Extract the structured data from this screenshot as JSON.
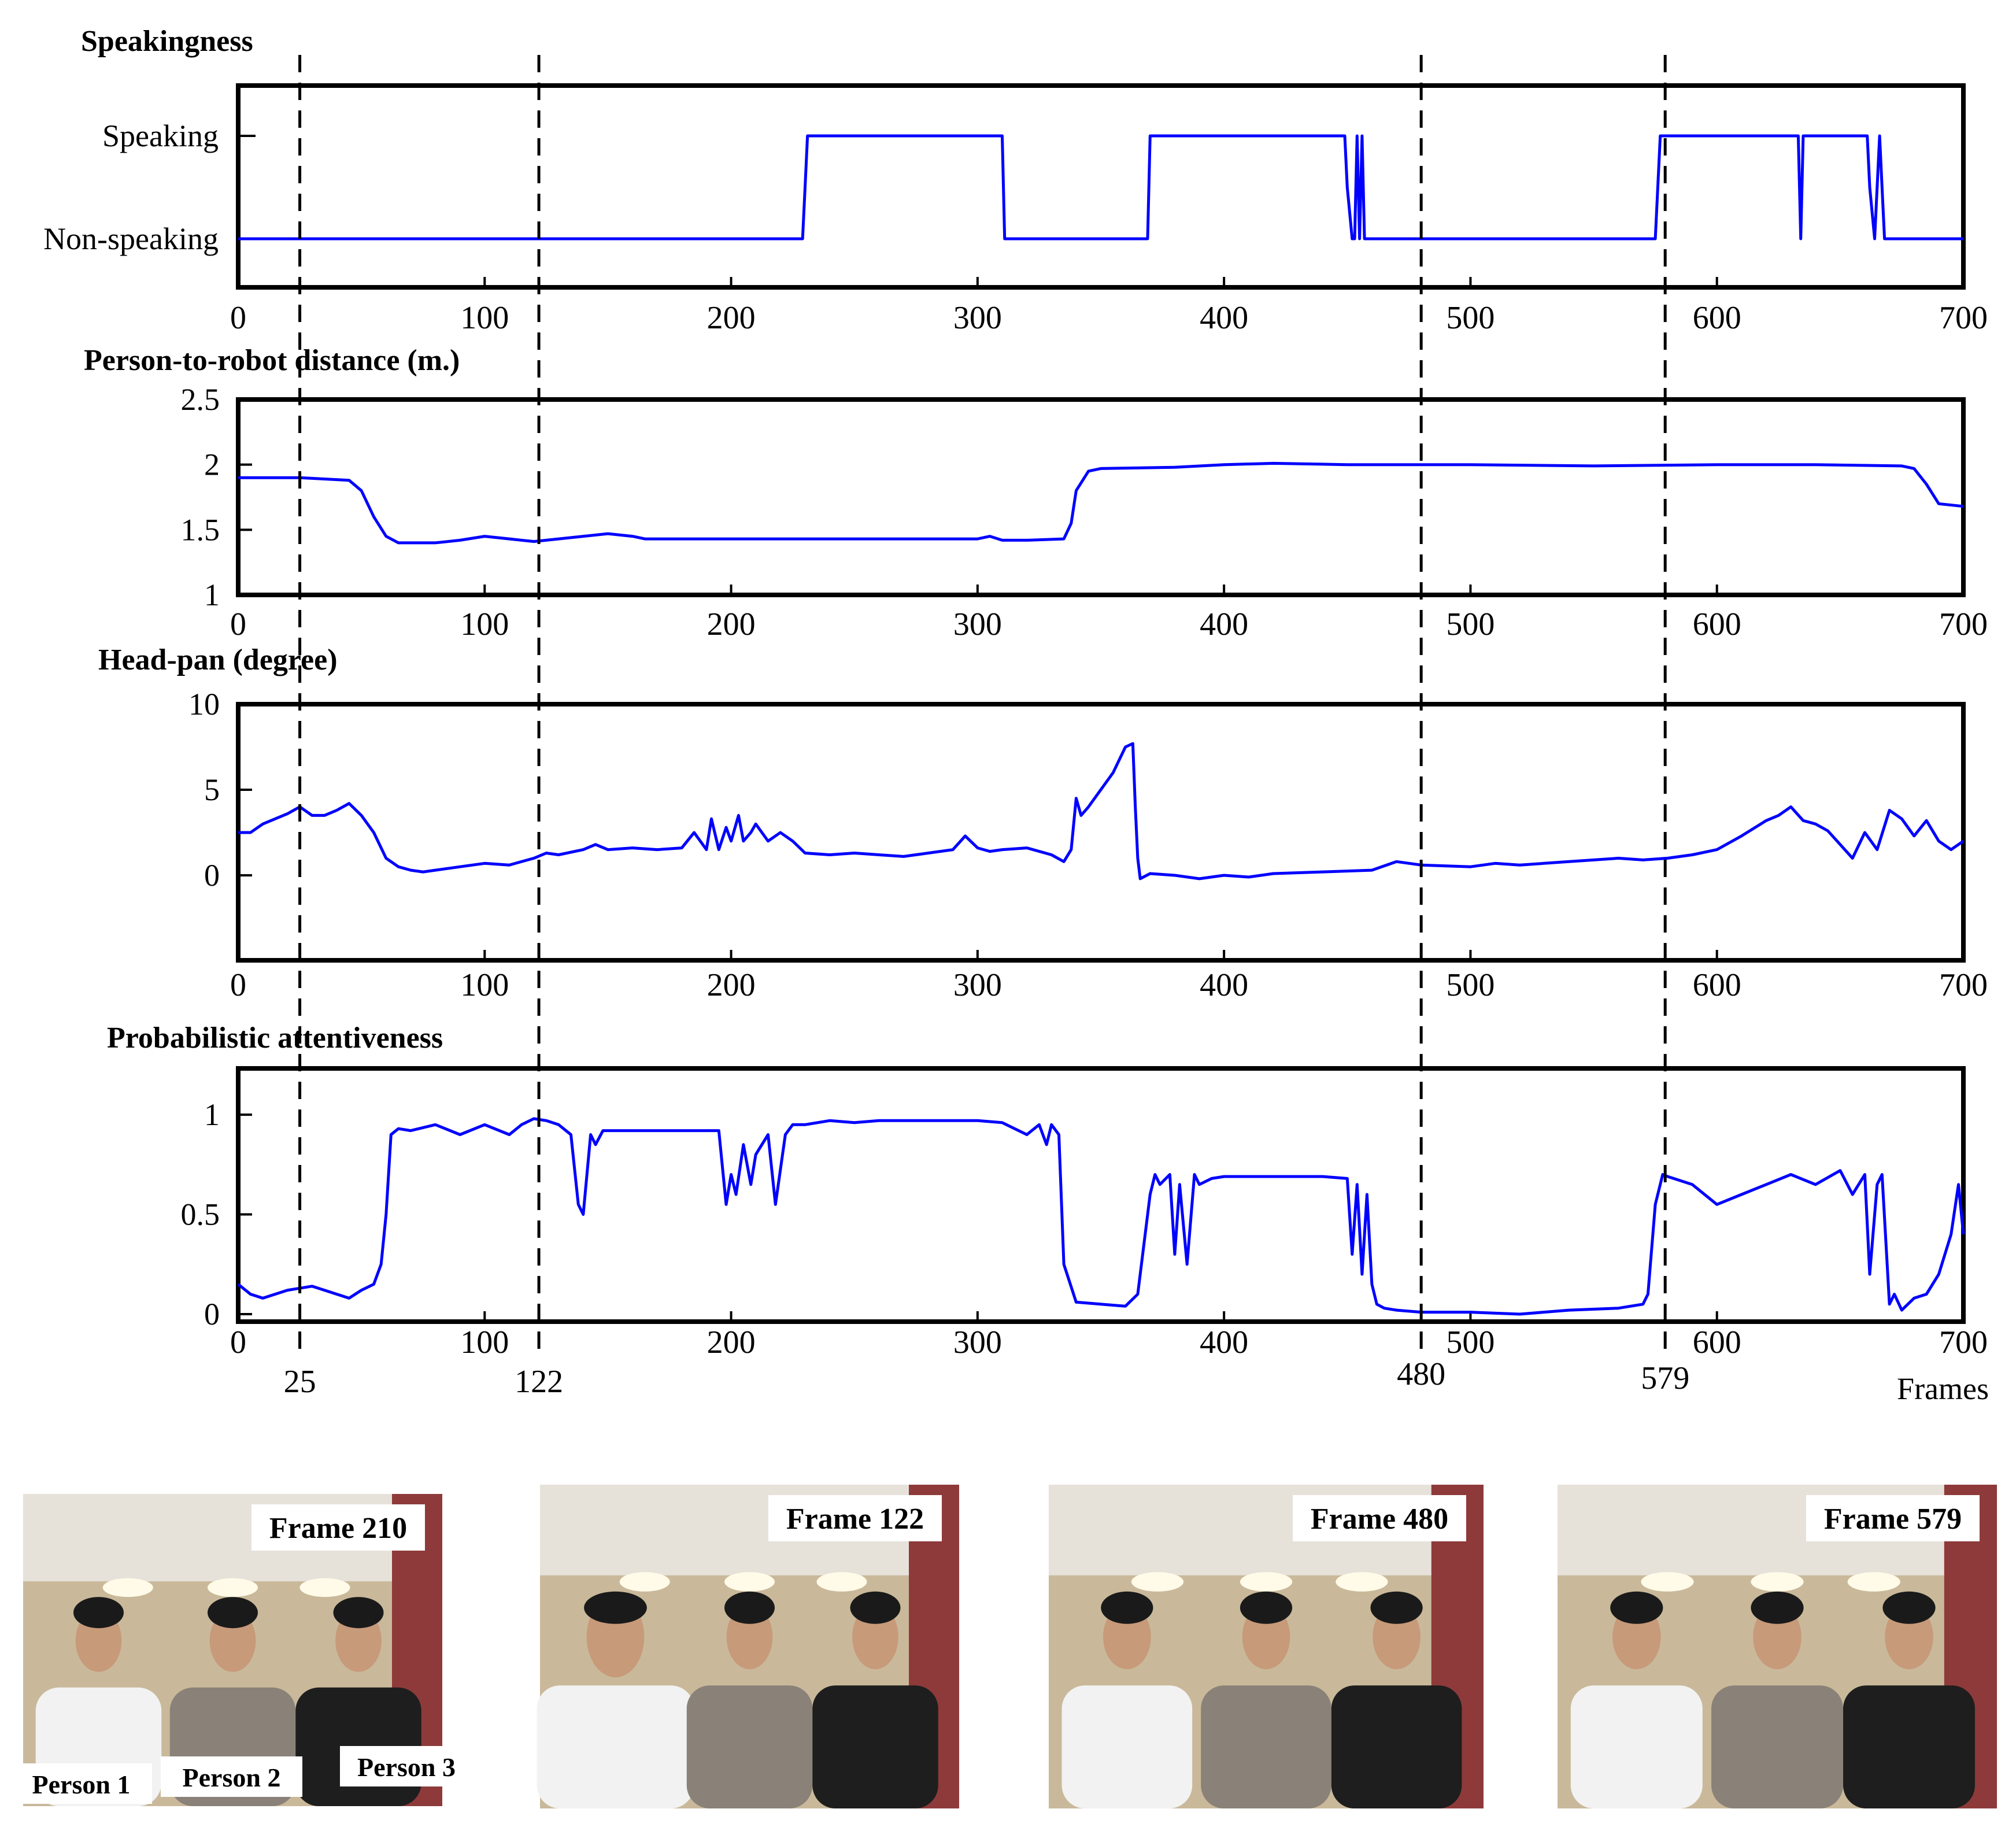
{
  "chart_data": [
    {
      "type": "line",
      "title": "Speakingness",
      "xlim": [
        0,
        700
      ],
      "xticks": [
        0,
        100,
        200,
        300,
        400,
        500,
        600,
        700
      ],
      "ytick_labels": [
        "Speaking",
        "Non-speaking"
      ],
      "ylim": [
        0,
        1
      ],
      "color": "#0000ff",
      "series": [
        {
          "x": [
            0,
            229,
            230,
            231,
            310,
            311,
            369,
            370,
            449,
            450,
            452,
            453,
            454,
            455,
            456,
            457,
            575,
            576,
            577,
            633,
            634,
            635,
            636,
            661,
            662,
            664,
            665,
            666,
            667,
            668,
            700
          ],
          "y": [
            0,
            0,
            0.5,
            1,
            1,
            0,
            0,
            1,
            1,
            0.5,
            0,
            0,
            1,
            0,
            1,
            0,
            0,
            0.5,
            1,
            1,
            0,
            1,
            1,
            1,
            0.5,
            0,
            0.5,
            1,
            0.5,
            0,
            0
          ]
        }
      ]
    },
    {
      "type": "line",
      "title": "Person-to-robot distance (m.)",
      "xlim": [
        0,
        700
      ],
      "xticks": [
        0,
        100,
        200,
        300,
        400,
        500,
        600,
        700
      ],
      "ylim": [
        1,
        2.5
      ],
      "yticks": [
        1,
        1.5,
        2,
        2.5
      ],
      "ytick_labels": [
        "1",
        "1.5",
        "2",
        "2.5"
      ],
      "color": "#0000ff",
      "series": [
        {
          "x": [
            0,
            25,
            45,
            50,
            55,
            60,
            65,
            80,
            90,
            100,
            120,
            125,
            140,
            150,
            160,
            165,
            170,
            200,
            240,
            300,
            305,
            310,
            320,
            335,
            338,
            340,
            345,
            350,
            380,
            400,
            420,
            450,
            500,
            550,
            600,
            640,
            675,
            680,
            685,
            690,
            700
          ],
          "y": [
            1.9,
            1.9,
            1.88,
            1.8,
            1.6,
            1.45,
            1.4,
            1.4,
            1.42,
            1.45,
            1.41,
            1.42,
            1.45,
            1.47,
            1.45,
            1.43,
            1.43,
            1.43,
            1.43,
            1.43,
            1.45,
            1.42,
            1.42,
            1.43,
            1.55,
            1.8,
            1.95,
            1.97,
            1.98,
            2.0,
            2.01,
            2.0,
            2.0,
            1.99,
            2.0,
            2.0,
            1.99,
            1.97,
            1.85,
            1.7,
            1.68
          ]
        }
      ]
    },
    {
      "type": "line",
      "title": "Head-pan (degree)",
      "xlim": [
        0,
        700
      ],
      "xticks": [
        0,
        100,
        200,
        300,
        400,
        500,
        600,
        700
      ],
      "ylim": [
        -5,
        10
      ],
      "yticks": [
        0,
        5,
        10
      ],
      "ytick_labels": [
        "0",
        "5",
        "10"
      ],
      "color": "#0000ff",
      "series": [
        {
          "x": [
            0,
            5,
            10,
            15,
            20,
            25,
            30,
            35,
            40,
            45,
            50,
            55,
            60,
            65,
            70,
            75,
            80,
            90,
            100,
            110,
            120,
            125,
            130,
            140,
            145,
            150,
            160,
            170,
            180,
            185,
            190,
            192,
            195,
            198,
            200,
            203,
            205,
            208,
            210,
            215,
            220,
            225,
            230,
            240,
            250,
            260,
            270,
            280,
            290,
            295,
            300,
            305,
            310,
            320,
            330,
            335,
            338,
            340,
            342,
            345,
            350,
            355,
            360,
            363,
            364,
            365,
            366,
            370,
            380,
            390,
            400,
            410,
            420,
            440,
            460,
            470,
            480,
            500,
            510,
            520,
            540,
            550,
            560,
            570,
            580,
            590,
            600,
            610,
            620,
            625,
            630,
            635,
            640,
            645,
            650,
            655,
            660,
            665,
            670,
            675,
            680,
            685,
            690,
            695,
            700
          ],
          "y": [
            2.5,
            2.5,
            3.0,
            3.3,
            3.6,
            4.0,
            3.5,
            3.5,
            3.8,
            4.2,
            3.5,
            2.5,
            1.0,
            0.5,
            0.3,
            0.2,
            0.3,
            0.5,
            0.7,
            0.6,
            1.0,
            1.3,
            1.2,
            1.5,
            1.8,
            1.5,
            1.6,
            1.5,
            1.6,
            2.5,
            1.5,
            3.3,
            1.5,
            2.8,
            2.0,
            3.5,
            2.0,
            2.5,
            3.0,
            2.0,
            2.5,
            2.0,
            1.3,
            1.2,
            1.3,
            1.2,
            1.1,
            1.3,
            1.5,
            2.3,
            1.6,
            1.4,
            1.5,
            1.6,
            1.2,
            0.8,
            1.5,
            4.5,
            3.5,
            4.0,
            5.0,
            6.0,
            7.5,
            7.7,
            4.0,
            1.0,
            -0.2,
            0.1,
            0.0,
            -0.2,
            0.0,
            -0.1,
            0.1,
            0.2,
            0.3,
            0.8,
            0.6,
            0.5,
            0.7,
            0.6,
            0.8,
            0.9,
            1.0,
            0.9,
            1.0,
            1.2,
            1.5,
            2.3,
            3.2,
            3.5,
            4.0,
            3.2,
            3.0,
            2.6,
            1.8,
            1.0,
            2.5,
            1.5,
            3.8,
            3.3,
            2.3,
            3.2,
            2.0,
            1.5,
            2.0
          ]
        }
      ]
    },
    {
      "type": "line",
      "title": "Probabilistic attentiveness",
      "xlim": [
        0,
        700
      ],
      "xticks": [
        0,
        100,
        200,
        300,
        400,
        500,
        600,
        700
      ],
      "ylim": [
        0,
        1.15
      ],
      "yticks": [
        0,
        0.5,
        1
      ],
      "ytick_labels": [
        "0",
        "0.5",
        "1"
      ],
      "xlabel": "Frames",
      "marker_ticks": [
        25,
        122,
        480,
        579
      ],
      "color": "#0000ff",
      "series": [
        {
          "x": [
            0,
            5,
            10,
            15,
            20,
            25,
            30,
            35,
            40,
            45,
            50,
            55,
            58,
            60,
            62,
            65,
            70,
            80,
            90,
            100,
            110,
            115,
            120,
            125,
            130,
            135,
            138,
            140,
            143,
            145,
            148,
            150,
            160,
            180,
            195,
            198,
            200,
            202,
            205,
            208,
            210,
            215,
            218,
            222,
            225,
            230,
            240,
            250,
            260,
            280,
            300,
            310,
            320,
            325,
            328,
            330,
            333,
            335,
            340,
            350,
            360,
            365,
            370,
            372,
            374,
            378,
            380,
            382,
            385,
            388,
            390,
            395,
            400,
            420,
            440,
            450,
            452,
            454,
            456,
            458,
            460,
            462,
            465,
            470,
            480,
            500,
            520,
            540,
            560,
            570,
            572,
            575,
            578,
            580,
            590,
            600,
            610,
            620,
            630,
            640,
            650,
            655,
            660,
            662,
            665,
            667,
            670,
            672,
            675,
            680,
            685,
            690,
            695,
            698,
            700
          ],
          "y": [
            0.15,
            0.1,
            0.08,
            0.1,
            0.12,
            0.13,
            0.14,
            0.12,
            0.1,
            0.08,
            0.12,
            0.15,
            0.25,
            0.5,
            0.9,
            0.93,
            0.92,
            0.95,
            0.9,
            0.95,
            0.9,
            0.95,
            0.98,
            0.97,
            0.95,
            0.9,
            0.55,
            0.5,
            0.9,
            0.85,
            0.92,
            0.92,
            0.92,
            0.92,
            0.92,
            0.55,
            0.7,
            0.6,
            0.85,
            0.65,
            0.8,
            0.9,
            0.55,
            0.9,
            0.95,
            0.95,
            0.97,
            0.96,
            0.97,
            0.97,
            0.97,
            0.96,
            0.9,
            0.95,
            0.85,
            0.95,
            0.9,
            0.25,
            0.06,
            0.05,
            0.04,
            0.1,
            0.6,
            0.7,
            0.65,
            0.7,
            0.3,
            0.65,
            0.25,
            0.7,
            0.65,
            0.68,
            0.69,
            0.69,
            0.69,
            0.68,
            0.3,
            0.65,
            0.2,
            0.6,
            0.15,
            0.05,
            0.03,
            0.02,
            0.01,
            0.01,
            0.0,
            0.02,
            0.03,
            0.05,
            0.1,
            0.55,
            0.7,
            0.69,
            0.65,
            0.55,
            0.6,
            0.65,
            0.7,
            0.65,
            0.72,
            0.6,
            0.7,
            0.2,
            0.65,
            0.7,
            0.05,
            0.1,
            0.02,
            0.08,
            0.1,
            0.2,
            0.4,
            0.65,
            0.4
          ]
        }
      ]
    }
  ],
  "markers": {
    "frames": [
      25,
      122,
      480,
      579
    ],
    "labels": [
      "25",
      "122",
      "480",
      "579"
    ]
  },
  "photos": [
    {
      "title": "Frame 210",
      "person_labels": [
        "Person 1",
        "Person 2",
        "Person 3"
      ]
    },
    {
      "title": "Frame 122",
      "person_labels": []
    },
    {
      "title": "Frame 480",
      "person_labels": []
    },
    {
      "title": "Frame 579",
      "person_labels": []
    }
  ],
  "colors": {
    "line": "#0000ff",
    "axes": "#000000"
  }
}
